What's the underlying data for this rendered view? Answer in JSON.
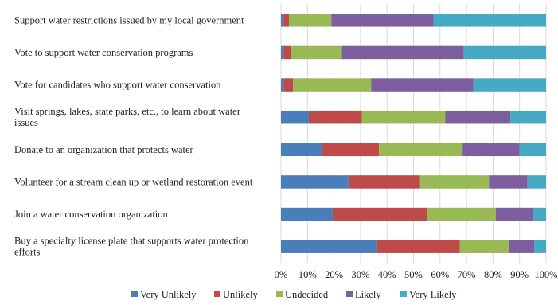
{
  "chart_data": {
    "type": "bar",
    "orientation": "horizontal",
    "stacked": "percent",
    "title": "",
    "xlabel": "",
    "ylabel": "",
    "xlim": [
      0,
      100
    ],
    "x_ticks": [
      "0%",
      "10%",
      "20%",
      "30%",
      "40%",
      "50%",
      "60%",
      "70%",
      "80%",
      "90%",
      "100%"
    ],
    "grid": "vertical",
    "legend_position": "bottom",
    "categories": [
      "Support water restrictions issued by my local government",
      "Vote to support water conservation programs",
      "Vote for candidates who support water conservation",
      "Visit springs, lakes, state parks, etc., to learn about water issues",
      "Donate to an organization that protects water",
      "Volunteer for a stream clean up or wetland restoration event",
      "Join a water conservation organization",
      "Buy a specialty license plate that supports water protection efforts"
    ],
    "category_lines": [
      [
        "Support water restrictions issued by my local government"
      ],
      [
        "Vote to support water conservation programs"
      ],
      [
        "Vote for candidates who support water conservation"
      ],
      [
        "Visit springs, lakes, state parks, etc., to learn about water",
        "issues"
      ],
      [
        "Donate to an organization that protects water"
      ],
      [
        "Volunteer for a stream clean up or wetland restoration event"
      ],
      [
        "Join a water conservation organization"
      ],
      [
        "Buy a specialty license plate that supports water protection",
        "efforts"
      ]
    ],
    "series": [
      {
        "name": "Very Unlikely",
        "color": "#4a7ebb",
        "values": [
          1,
          1,
          1,
          10.5,
          15.5,
          25.5,
          19.5,
          36
        ]
      },
      {
        "name": "Unlikely",
        "color": "#be4b48",
        "values": [
          2,
          3,
          3.5,
          20,
          21.5,
          27,
          35.5,
          31.5
        ]
      },
      {
        "name": "Undecided",
        "color": "#98b954",
        "values": [
          16,
          19,
          29.5,
          31.5,
          31.5,
          26,
          26,
          18.5
        ]
      },
      {
        "name": "Likely",
        "color": "#7d5fa0",
        "values": [
          38.5,
          46,
          38.5,
          24.5,
          21.5,
          14.5,
          14,
          9.5
        ]
      },
      {
        "name": "Very Likely",
        "color": "#46aac5",
        "values": [
          42.5,
          31,
          27.5,
          13.5,
          10,
          7,
          5,
          4.5
        ]
      }
    ]
  }
}
